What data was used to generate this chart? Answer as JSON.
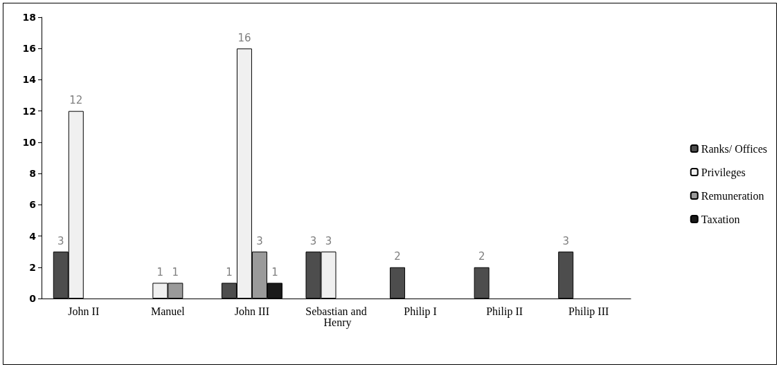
{
  "chart_data": {
    "type": "bar",
    "categories": [
      "John II",
      "Manuel",
      "John III",
      "Sebastian and Henry",
      "Philip I",
      "Philip II",
      "Philip III"
    ],
    "series": [
      {
        "name": "Ranks/ Offices",
        "color": "#4d4d4d",
        "values": [
          3,
          null,
          1,
          3,
          2,
          2,
          3
        ]
      },
      {
        "name": "Privileges",
        "color": "#f0f0f0",
        "values": [
          12,
          1,
          16,
          3,
          null,
          null,
          null
        ]
      },
      {
        "name": "Remuneration",
        "color": "#9a9a9a",
        "values": [
          null,
          1,
          3,
          null,
          null,
          null,
          null
        ]
      },
      {
        "name": "Taxation",
        "color": "#1a1a1a",
        "values": [
          null,
          null,
          1,
          null,
          null,
          null,
          null
        ]
      }
    ],
    "ylim": [
      0,
      18
    ],
    "yticks": [
      0,
      2,
      4,
      6,
      8,
      10,
      12,
      14,
      16,
      18
    ],
    "grid": false,
    "legend": "right",
    "data_labels": true
  }
}
